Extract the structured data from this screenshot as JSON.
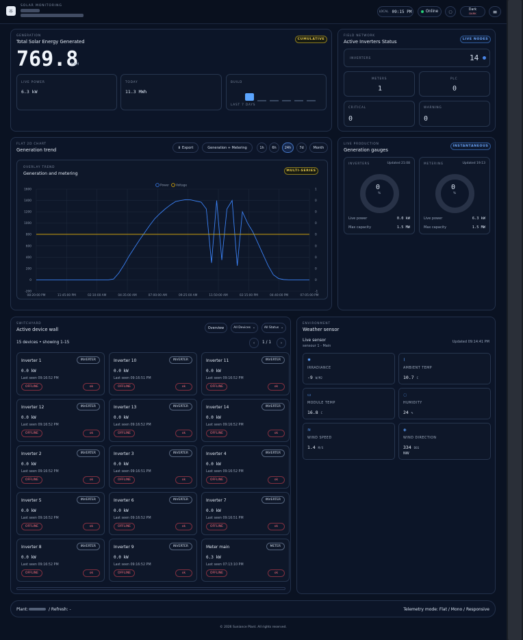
{
  "header": {
    "brand": "SOLAR MONITORING",
    "time_label": "LOCAL",
    "time": "09:15 PM",
    "status": "Online",
    "theme_title": "Dark",
    "theme_sub": "DARK"
  },
  "generation": {
    "kicker": "GENERATION",
    "title": "Total Solar Energy Generated",
    "badge": "CUMULATIVE",
    "total": "769.8",
    "unit": "MWH",
    "live_label": "LIVE POWER",
    "live_value": "6.3 kW",
    "today_label": "TODAY",
    "today_value": "11.3 MWh",
    "build_label": "BUILD",
    "build_sub": "LAST 7 DAYS",
    "build_values": [
      0,
      0,
      0,
      0,
      0,
      0,
      1
    ]
  },
  "field": {
    "kicker": "FIELD NETWORK",
    "title": "Active Inverters Status",
    "badge": "LIVE NODES",
    "inverters_label": "INVERTERS",
    "inverters": "14",
    "meters_label": "METERS",
    "meters": "1",
    "plc_label": "PLC",
    "plc": "0",
    "critical_label": "CRITICAL",
    "critical": "0",
    "warning_label": "WARNING",
    "warning": "0"
  },
  "trend": {
    "kicker": "FLAT 2D CHART",
    "title": "Generation trend",
    "export": "Export",
    "mode": "Generation + Metering",
    "ranges": [
      "1h",
      "6h",
      "24h",
      "7d",
      "Month"
    ],
    "inner_kicker": "OVERLAY TREND",
    "inner_title": "Generation and metering",
    "badge": "MULTI-SERIES"
  },
  "chart_data": {
    "type": "line",
    "title": "Generation and metering",
    "series": [
      {
        "name": "Power",
        "color": "#3b82f6",
        "x": [
          "08:20",
          "09:00",
          "10:00",
          "11:00",
          "12:00",
          "12:45",
          "13:10",
          "13:40",
          "14:00",
          "14:40",
          "15:10",
          "15:30",
          "16:00",
          "16:30",
          "17:00",
          "17:40",
          "18:05",
          "18:30",
          "18:50",
          "19:10",
          "19:30",
          "19:50",
          "20:10",
          "20:25",
          "20:40",
          "20:55",
          "21:10",
          "21:25",
          "21:40",
          "21:55",
          "22:10",
          "22:30",
          "22:50",
          "23:05",
          "23:20",
          "23:40",
          "00:00",
          "00:30",
          "01:00",
          "01:30",
          "02:00",
          "02:30",
          "03:00",
          "03:30",
          "04:00",
          "04:30",
          "05:00",
          "05:30",
          "06:00",
          "06:30",
          "07:00",
          "07:30",
          "08:00",
          "08:20"
        ],
        "y": [
          0,
          0,
          0,
          0,
          0,
          0,
          0,
          0,
          0,
          0,
          0,
          0,
          0,
          0,
          0,
          15,
          120,
          260,
          420,
          560,
          700,
          830,
          960,
          1080,
          1170,
          1250,
          1320,
          1380,
          1400,
          1415,
          1410,
          1390,
          1370,
          1250,
          300,
          1400,
          350,
          1250,
          1400,
          250,
          1200,
          1000,
          850,
          650,
          450,
          250,
          90,
          25,
          5,
          0,
          0,
          0,
          0,
          0
        ]
      },
      {
        "name": "Voltage",
        "color": "#eab308",
        "x": [
          "08:20",
          "08:20"
        ],
        "y": [
          0,
          0
        ]
      }
    ],
    "xlabel": "",
    "ylabel": "",
    "ylim": [
      -200,
      1600
    ],
    "y2lim": [
      -1,
      1
    ],
    "xticks": [
      "08:20:00 PM",
      "11:45:00 PM",
      "02:10:00 AM",
      "04:35:00 AM",
      "07:00:00 AM",
      "09:25:00 AM",
      "11:50:00 AM",
      "02:15:00 PM",
      "04:40:00 PM",
      "07:05:00 PM"
    ],
    "yticks": [
      "1600",
      "1400",
      "1200",
      "1000",
      "800",
      "600",
      "400",
      "200",
      "0",
      "-200"
    ],
    "y2ticks": [
      "1",
      "0",
      "0",
      "0",
      "0",
      "0",
      "0",
      "0",
      "0",
      "-1"
    ],
    "grid": true,
    "legend": "top"
  },
  "gauges": {
    "kicker": "LIVE PRODUCTION",
    "title": "Generation gauges",
    "badge": "INSTANTANEOUS",
    "left": {
      "label": "INVERTERS",
      "updated": "Updated 21:08",
      "value": "0",
      "unit": "%",
      "live_label": "Live power",
      "live_value": "0.0 kW",
      "cap_label": "Max capacity",
      "cap_value": "1.5 MW"
    },
    "right": {
      "label": "METERING",
      "updated": "Updated 19:13",
      "value": "0",
      "unit": "%",
      "live_label": "Live power",
      "live_value": "6.3 kW",
      "cap_label": "Max capacity",
      "cap_value": "1.5 MW"
    }
  },
  "devices": {
    "kicker": "SWITCHYARD",
    "title": "Active device wall",
    "overview": "Overview",
    "filter_devices": "All Devices",
    "filter_status": "All Status",
    "summary": "15 devices • showing 1-15",
    "page": "1 / 1",
    "items": [
      {
        "name": "Inverter 1",
        "type": "INVERTER",
        "value": "0.0 kW",
        "seen": "Last seen 09:16:52 PM",
        "status": "OFFLINE",
        "ok": "ok"
      },
      {
        "name": "Inverter 10",
        "type": "INVERTER",
        "value": "0.0 kW",
        "seen": "Last seen 09:16:51 PM",
        "status": "OFFLINE",
        "ok": "ok"
      },
      {
        "name": "Inverter 11",
        "type": "INVERTER",
        "value": "0.0 kW",
        "seen": "Last seen 09:16:52 PM",
        "status": "OFFLINE",
        "ok": "ok"
      },
      {
        "name": "Inverter 12",
        "type": "INVERTER",
        "value": "0.0 kW",
        "seen": "Last seen 09:16:52 PM",
        "status": "OFFLINE",
        "ok": "ok"
      },
      {
        "name": "Inverter 13",
        "type": "INVERTER",
        "value": "0.0 kW",
        "seen": "Last seen 09:16:52 PM",
        "status": "OFFLINE",
        "ok": "ok"
      },
      {
        "name": "Inverter 14",
        "type": "INVERTER",
        "value": "0.0 kW",
        "seen": "Last seen 09:16:52 PM",
        "status": "OFFLINE",
        "ok": "ok"
      },
      {
        "name": "Inverter 2",
        "type": "INVERTER",
        "value": "0.0 kW",
        "seen": "Last seen 09:16:52 PM",
        "status": "OFFLINE",
        "ok": "ok"
      },
      {
        "name": "Inverter 3",
        "type": "INVERTER",
        "value": "0.0 kW",
        "seen": "Last seen 09:16:51 PM",
        "status": "OFFLINE",
        "ok": "ok"
      },
      {
        "name": "Inverter 4",
        "type": "INVERTER",
        "value": "0.0 kW",
        "seen": "Last seen 09:16:52 PM",
        "status": "OFFLINE",
        "ok": "ok"
      },
      {
        "name": "Inverter 5",
        "type": "INVERTER",
        "value": "0.0 kW",
        "seen": "Last seen 09:16:52 PM",
        "status": "OFFLINE",
        "ok": "ok"
      },
      {
        "name": "Inverter 6",
        "type": "INVERTER",
        "value": "0.0 kW",
        "seen": "Last seen 09:16:52 PM",
        "status": "OFFLINE",
        "ok": "ok"
      },
      {
        "name": "Inverter 7",
        "type": "INVERTER",
        "value": "0.0 kW",
        "seen": "Last seen 09:16:51 PM",
        "status": "OFFLINE",
        "ok": "ok"
      },
      {
        "name": "Inverter 8",
        "type": "INVERTER",
        "value": "0.0 kW",
        "seen": "Last seen 09:16:52 PM",
        "status": "OFFLINE",
        "ok": "ok"
      },
      {
        "name": "Inverter 9",
        "type": "INVERTER",
        "value": "0.0 kW",
        "seen": "Last seen 09:16:52 PM",
        "status": "OFFLINE",
        "ok": "ok"
      },
      {
        "name": "Meter main",
        "type": "METER",
        "value": "6.3 kW",
        "seen": "Last seen 07:13:10 PM",
        "status": "OFFLINE",
        "ok": "ok"
      }
    ]
  },
  "weather": {
    "kicker": "ENVIRONMENT",
    "title": "Weather sensor",
    "live": "Live sensor",
    "sensor": "sensour 1 - Main",
    "updated": "Updated 09:14:41 PM",
    "cards": [
      {
        "icon": "sun-icon",
        "label": "IRRADIANCE",
        "value": "-9",
        "unit": "W/M2"
      },
      {
        "icon": "thermometer-icon",
        "label": "AMBIENT TEMP",
        "value": "10.7",
        "unit": "C"
      },
      {
        "icon": "panel-icon",
        "label": "MODULE TEMP",
        "value": "16.8",
        "unit": "C"
      },
      {
        "icon": "droplet-icon",
        "label": "HUMIDITY",
        "value": "24",
        "unit": "%"
      },
      {
        "icon": "wind-icon",
        "label": "WIND SPEED",
        "value": "1.4",
        "unit": "M/S"
      },
      {
        "icon": "compass-icon",
        "label": "WIND DIRECTION",
        "value": "334",
        "unit": "DEG",
        "extra": "NW"
      }
    ]
  },
  "footer": {
    "plant": "Plant:",
    "refresh": "/  Refresh: -",
    "telemetry": "Telemetry mode: Flat / Mono / Responsive",
    "copyright": "© 2026 Suniance Plant. All rights reserved."
  }
}
